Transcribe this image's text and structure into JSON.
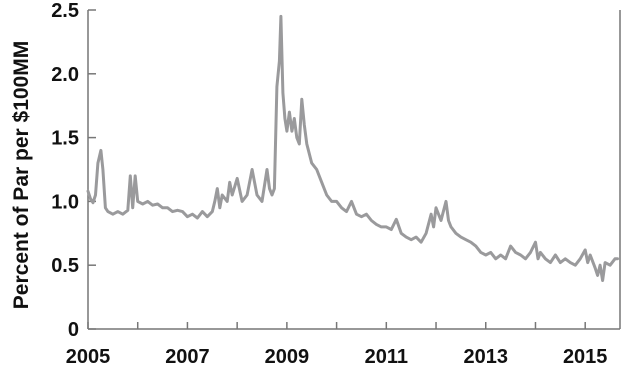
{
  "chart_data": {
    "type": "line",
    "title": "",
    "xlabel": "",
    "ylabel": "Percent of Par per $100MM",
    "xlim": [
      2005.0,
      2015.7
    ],
    "ylim": [
      0,
      2.5
    ],
    "x_ticks": [
      "2005",
      "2007",
      "2009",
      "2011",
      "2013",
      "2015"
    ],
    "y_ticks": [
      "0",
      "0.5",
      "1.0",
      "1.5",
      "2.0",
      "2.5"
    ],
    "grid": false,
    "legend": "none",
    "series": [
      {
        "color": "#9a9a9c",
        "points": [
          [
            2005.0,
            1.08
          ],
          [
            2005.05,
            1.02
          ],
          [
            2005.1,
            0.99
          ],
          [
            2005.15,
            1.05
          ],
          [
            2005.2,
            1.3
          ],
          [
            2005.26,
            1.4
          ],
          [
            2005.3,
            1.25
          ],
          [
            2005.35,
            0.95
          ],
          [
            2005.4,
            0.92
          ],
          [
            2005.5,
            0.9
          ],
          [
            2005.6,
            0.92
          ],
          [
            2005.7,
            0.9
          ],
          [
            2005.8,
            0.93
          ],
          [
            2005.85,
            1.2
          ],
          [
            2005.9,
            0.95
          ],
          [
            2005.95,
            1.2
          ],
          [
            2006.0,
            1.0
          ],
          [
            2006.1,
            0.98
          ],
          [
            2006.2,
            1.0
          ],
          [
            2006.3,
            0.97
          ],
          [
            2006.4,
            0.98
          ],
          [
            2006.5,
            0.95
          ],
          [
            2006.6,
            0.95
          ],
          [
            2006.7,
            0.92
          ],
          [
            2006.8,
            0.93
          ],
          [
            2006.9,
            0.92
          ],
          [
            2007.0,
            0.88
          ],
          [
            2007.1,
            0.9
          ],
          [
            2007.2,
            0.87
          ],
          [
            2007.3,
            0.92
          ],
          [
            2007.4,
            0.88
          ],
          [
            2007.5,
            0.92
          ],
          [
            2007.55,
            1.0
          ],
          [
            2007.6,
            1.1
          ],
          [
            2007.65,
            0.95
          ],
          [
            2007.7,
            1.05
          ],
          [
            2007.8,
            1.0
          ],
          [
            2007.85,
            1.15
          ],
          [
            2007.9,
            1.05
          ],
          [
            2008.0,
            1.18
          ],
          [
            2008.1,
            1.0
          ],
          [
            2008.2,
            1.05
          ],
          [
            2008.3,
            1.25
          ],
          [
            2008.4,
            1.05
          ],
          [
            2008.5,
            1.0
          ],
          [
            2008.6,
            1.25
          ],
          [
            2008.65,
            1.1
          ],
          [
            2008.7,
            1.05
          ],
          [
            2008.75,
            1.1
          ],
          [
            2008.8,
            1.9
          ],
          [
            2008.85,
            2.1
          ],
          [
            2008.88,
            2.45
          ],
          [
            2008.92,
            1.85
          ],
          [
            2008.96,
            1.65
          ],
          [
            2009.0,
            1.55
          ],
          [
            2009.05,
            1.7
          ],
          [
            2009.1,
            1.55
          ],
          [
            2009.15,
            1.65
          ],
          [
            2009.2,
            1.5
          ],
          [
            2009.25,
            1.45
          ],
          [
            2009.3,
            1.8
          ],
          [
            2009.35,
            1.6
          ],
          [
            2009.4,
            1.45
          ],
          [
            2009.5,
            1.3
          ],
          [
            2009.6,
            1.25
          ],
          [
            2009.7,
            1.15
          ],
          [
            2009.8,
            1.05
          ],
          [
            2009.9,
            1.0
          ],
          [
            2010.0,
            1.0
          ],
          [
            2010.1,
            0.95
          ],
          [
            2010.2,
            0.92
          ],
          [
            2010.3,
            1.0
          ],
          [
            2010.4,
            0.9
          ],
          [
            2010.5,
            0.88
          ],
          [
            2010.6,
            0.9
          ],
          [
            2010.7,
            0.85
          ],
          [
            2010.8,
            0.82
          ],
          [
            2010.9,
            0.8
          ],
          [
            2011.0,
            0.8
          ],
          [
            2011.1,
            0.78
          ],
          [
            2011.2,
            0.86
          ],
          [
            2011.3,
            0.75
          ],
          [
            2011.4,
            0.72
          ],
          [
            2011.5,
            0.7
          ],
          [
            2011.6,
            0.72
          ],
          [
            2011.7,
            0.68
          ],
          [
            2011.8,
            0.75
          ],
          [
            2011.9,
            0.9
          ],
          [
            2011.95,
            0.8
          ],
          [
            2012.0,
            0.95
          ],
          [
            2012.1,
            0.85
          ],
          [
            2012.2,
            1.0
          ],
          [
            2012.25,
            0.85
          ],
          [
            2012.3,
            0.8
          ],
          [
            2012.4,
            0.75
          ],
          [
            2012.5,
            0.72
          ],
          [
            2012.6,
            0.7
          ],
          [
            2012.7,
            0.68
          ],
          [
            2012.8,
            0.65
          ],
          [
            2012.9,
            0.6
          ],
          [
            2013.0,
            0.58
          ],
          [
            2013.1,
            0.6
          ],
          [
            2013.2,
            0.55
          ],
          [
            2013.3,
            0.58
          ],
          [
            2013.4,
            0.55
          ],
          [
            2013.5,
            0.65
          ],
          [
            2013.6,
            0.6
          ],
          [
            2013.7,
            0.58
          ],
          [
            2013.8,
            0.55
          ],
          [
            2013.9,
            0.6
          ],
          [
            2014.0,
            0.68
          ],
          [
            2014.05,
            0.55
          ],
          [
            2014.1,
            0.6
          ],
          [
            2014.2,
            0.55
          ],
          [
            2014.3,
            0.52
          ],
          [
            2014.4,
            0.58
          ],
          [
            2014.5,
            0.52
          ],
          [
            2014.6,
            0.55
          ],
          [
            2014.7,
            0.52
          ],
          [
            2014.8,
            0.5
          ],
          [
            2014.9,
            0.55
          ],
          [
            2015.0,
            0.62
          ],
          [
            2015.05,
            0.52
          ],
          [
            2015.1,
            0.58
          ],
          [
            2015.2,
            0.48
          ],
          [
            2015.25,
            0.42
          ],
          [
            2015.3,
            0.5
          ],
          [
            2015.35,
            0.38
          ],
          [
            2015.4,
            0.52
          ],
          [
            2015.5,
            0.5
          ],
          [
            2015.6,
            0.55
          ],
          [
            2015.65,
            0.55
          ]
        ]
      }
    ]
  }
}
